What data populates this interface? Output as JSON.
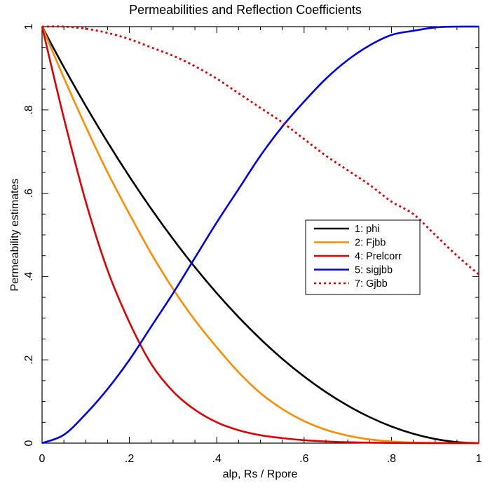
{
  "chart_data": {
    "type": "line",
    "title": "Permeabilities and Reflection Coefficients",
    "xlabel": "alp, Rs / Rpore",
    "ylabel": "Permeability estimates",
    "xlim": [
      0,
      1
    ],
    "ylim": [
      0,
      1
    ],
    "x_ticks": [
      0,
      0.2,
      0.4,
      0.6,
      0.8,
      1
    ],
    "x_tick_labels": [
      "0",
      ".2",
      ".4",
      ".6",
      ".8",
      "1"
    ],
    "y_ticks": [
      0,
      0.2,
      0.4,
      0.6,
      0.8,
      1
    ],
    "y_tick_labels": [
      "0",
      ".2",
      ".4",
      ".6",
      ".8",
      "1"
    ],
    "grid": false,
    "legend_position": "center-right",
    "x": [
      0,
      0.05,
      0.1,
      0.15,
      0.2,
      0.25,
      0.3,
      0.35,
      0.4,
      0.45,
      0.5,
      0.55,
      0.6,
      0.65,
      0.7,
      0.75,
      0.8,
      0.85,
      0.9,
      0.95,
      1.0
    ],
    "series": [
      {
        "name": "1: phi",
        "color": "#000000",
        "dash": "solid",
        "values": [
          1.0,
          0.9025,
          0.81,
          0.7225,
          0.64,
          0.5625,
          0.49,
          0.4225,
          0.36,
          0.3025,
          0.25,
          0.2025,
          0.16,
          0.1225,
          0.09,
          0.0625,
          0.04,
          0.0225,
          0.01,
          0.0025,
          0.0
        ]
      },
      {
        "name": "2: Fjbb",
        "color": "#ff8c00",
        "dash": "solid",
        "values": [
          1.0,
          0.877,
          0.76,
          0.65,
          0.55,
          0.455,
          0.37,
          0.295,
          0.23,
          0.17,
          0.12,
          0.082,
          0.053,
          0.032,
          0.018,
          0.009,
          0.004,
          0.0015,
          0.0005,
          0.0001,
          0.0
        ]
      },
      {
        "name": "4: Prelcorr",
        "color": "#e00000",
        "dash": "solid",
        "values": [
          1.0,
          0.78,
          0.58,
          0.415,
          0.29,
          0.19,
          0.124,
          0.08,
          0.05,
          0.031,
          0.019,
          0.012,
          0.007,
          0.004,
          0.0022,
          0.0012,
          0.0006,
          0.0003,
          0.0001,
          0.0,
          0.0
        ]
      },
      {
        "name": "5: sigjbb",
        "color": "#0000e6",
        "dash": "solid",
        "values": [
          0.0,
          0.02,
          0.07,
          0.13,
          0.2,
          0.28,
          0.36,
          0.445,
          0.53,
          0.61,
          0.69,
          0.76,
          0.82,
          0.875,
          0.92,
          0.955,
          0.98,
          0.99,
          0.998,
          1.0,
          1.0
        ]
      },
      {
        "name": "7: Gjbb",
        "color": "#e00000",
        "dash": "dotted",
        "values": [
          1.0,
          1.0,
          0.995,
          0.985,
          0.97,
          0.95,
          0.93,
          0.905,
          0.875,
          0.84,
          0.805,
          0.77,
          0.73,
          0.69,
          0.655,
          0.62,
          0.58,
          0.55,
          0.5,
          0.45,
          0.405
        ]
      }
    ]
  }
}
